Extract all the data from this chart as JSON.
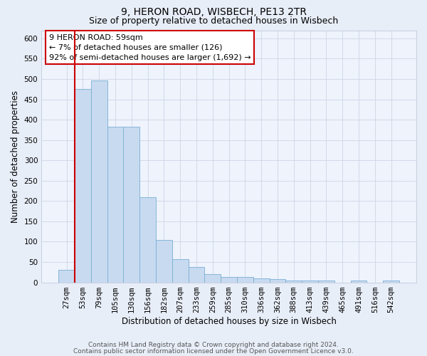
{
  "title_line1": "9, HERON ROAD, WISBECH, PE13 2TR",
  "title_line2": "Size of property relative to detached houses in Wisbech",
  "xlabel": "Distribution of detached houses by size in Wisbech",
  "ylabel": "Number of detached properties",
  "categories": [
    "27sqm",
    "53sqm",
    "79sqm",
    "105sqm",
    "130sqm",
    "156sqm",
    "182sqm",
    "207sqm",
    "233sqm",
    "259sqm",
    "285sqm",
    "310sqm",
    "336sqm",
    "362sqm",
    "388sqm",
    "413sqm",
    "439sqm",
    "465sqm",
    "491sqm",
    "516sqm",
    "542sqm"
  ],
  "values": [
    30,
    475,
    497,
    382,
    382,
    210,
    104,
    57,
    38,
    20,
    13,
    13,
    10,
    8,
    5,
    5,
    5,
    0,
    5,
    0,
    5
  ],
  "bar_color": "#c8daf0",
  "bar_edge_color": "#7aafd4",
  "red_line_x": 1,
  "annotation_box_text": "9 HERON ROAD: 59sqm\n← 7% of detached houses are smaller (126)\n92% of semi-detached houses are larger (1,692) →",
  "annotation_box_color": "#ffffff",
  "annotation_box_edge_color": "#cc0000",
  "ylim": [
    0,
    620
  ],
  "yticks": [
    0,
    50,
    100,
    150,
    200,
    250,
    300,
    350,
    400,
    450,
    500,
    550,
    600
  ],
  "footer_line1": "Contains HM Land Registry data © Crown copyright and database right 2024.",
  "footer_line2": "Contains public sector information licensed under the Open Government Licence v3.0.",
  "background_color": "#e8eef8",
  "plot_background_color": "#eef3fc",
  "grid_color": "#c8d0e0",
  "title_fontsize": 10,
  "subtitle_fontsize": 9,
  "axis_label_fontsize": 8.5,
  "tick_fontsize": 7.5,
  "annotation_fontsize": 8,
  "footer_fontsize": 6.5
}
